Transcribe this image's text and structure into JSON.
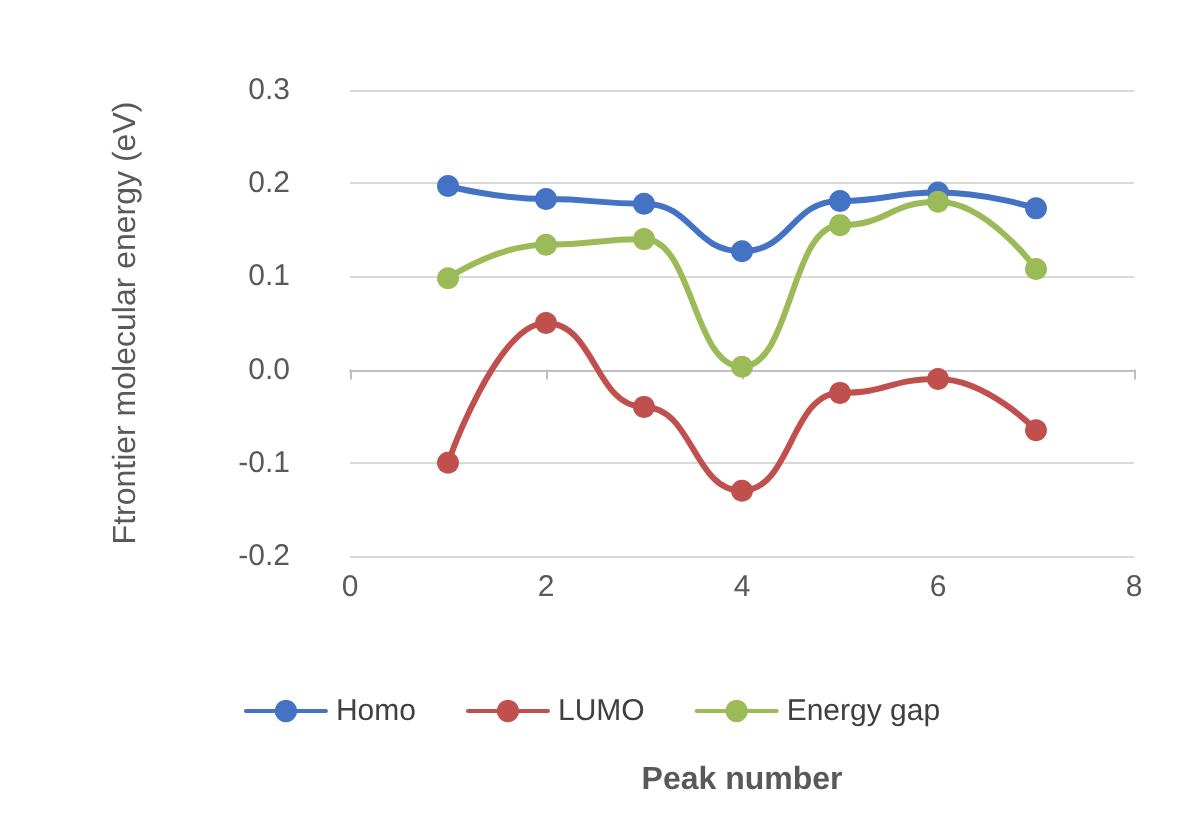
{
  "chart_data": {
    "type": "line",
    "xlabel": "Peak number",
    "ylabel": "Ftrontier molecular energy (eV)",
    "x": [
      1,
      2,
      3,
      4,
      5,
      6,
      7
    ],
    "series": [
      {
        "name": "Homo",
        "color": "#4472c4",
        "values": [
          0.197,
          0.183,
          0.178,
          0.127,
          0.181,
          0.19,
          0.173
        ]
      },
      {
        "name": "LUMO",
        "color": "#c0504d",
        "values": [
          -0.1,
          0.05,
          -0.04,
          -0.13,
          -0.025,
          -0.01,
          -0.065
        ]
      },
      {
        "name": "Energy gap",
        "color": "#9bbb59",
        "values": [
          0.098,
          0.134,
          0.14,
          0.003,
          0.155,
          0.18,
          0.108
        ]
      }
    ],
    "xlim": [
      0,
      8
    ],
    "xticks": [
      0,
      2,
      4,
      6,
      8
    ],
    "ylim": [
      -0.2,
      0.3
    ],
    "yticks": [
      -0.2,
      -0.1,
      {
        "value": 0,
        "label": "0.0"
      },
      0.1,
      0.2,
      0.3
    ],
    "grid": "y",
    "legend": "bottom",
    "marker": "circle",
    "line_style": "solid"
  }
}
